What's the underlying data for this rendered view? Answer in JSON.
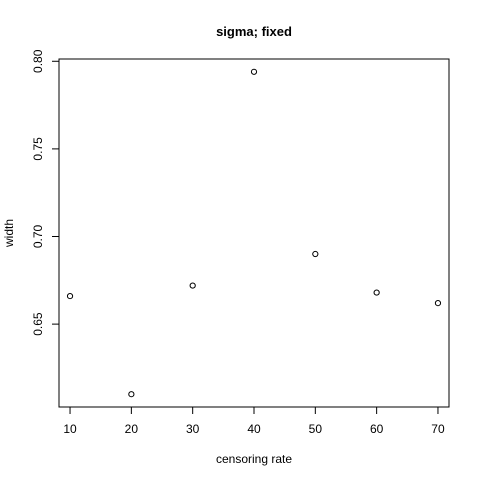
{
  "chart_data": {
    "type": "scatter",
    "title": "sigma; fixed",
    "xlabel": "censoring rate",
    "ylabel": "width",
    "x": [
      10,
      20,
      30,
      40,
      50,
      60,
      70
    ],
    "y": [
      0.666,
      0.61,
      0.672,
      0.794,
      0.69,
      0.668,
      0.662
    ],
    "xlim": [
      8.2,
      71.8
    ],
    "ylim": [
      0.6027,
      0.8013
    ],
    "xticks": [
      10,
      20,
      30,
      40,
      50,
      60,
      70
    ],
    "yticks": [
      0.65,
      0.7,
      0.75,
      0.8
    ],
    "xtick_labels": [
      "10",
      "20",
      "30",
      "40",
      "50",
      "60",
      "70"
    ],
    "ytick_labels": [
      "0.65",
      "0.70",
      "0.75",
      "0.80"
    ],
    "grid": false,
    "marker": "open-circle",
    "color": "#000000"
  }
}
